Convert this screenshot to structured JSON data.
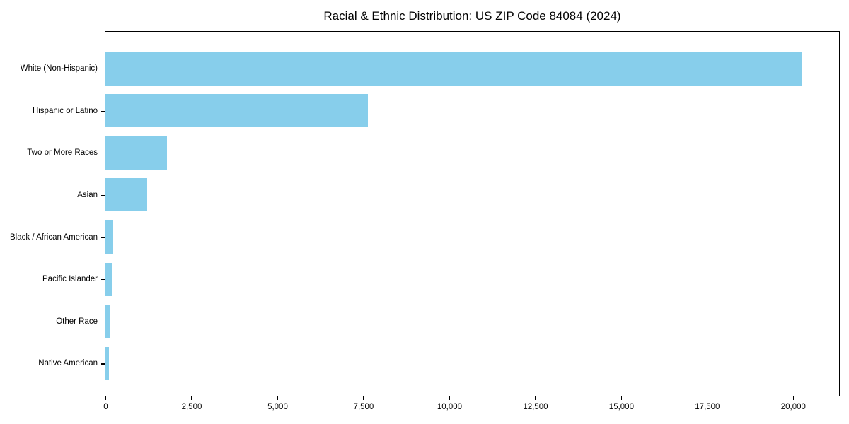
{
  "chart_data": {
    "type": "bar",
    "orientation": "horizontal",
    "title": "Racial & Ethnic Distribution: US ZIP Code 84084 (2024)",
    "categories": [
      "White (Non-Hispanic)",
      "Hispanic or Latino",
      "Two or More Races",
      "Asian",
      "Black / African American",
      "Pacific Islander",
      "Other Race",
      "Native American"
    ],
    "values": [
      20270,
      7640,
      1800,
      1220,
      225,
      210,
      120,
      100
    ],
    "xlabel": "",
    "ylabel": "",
    "xlim": [
      0,
      21320
    ],
    "xticks": [
      0,
      2500,
      5000,
      7500,
      10000,
      12500,
      15000,
      17500,
      20000
    ],
    "xtick_labels": [
      "0",
      "2,500",
      "5,000",
      "7,500",
      "10,000",
      "12,500",
      "15,000",
      "17,500",
      "20,000"
    ],
    "bar_color": "#87CEEB",
    "background_color": "#ffffff",
    "spine_color": "#000000",
    "grid": false,
    "legend": false
  }
}
